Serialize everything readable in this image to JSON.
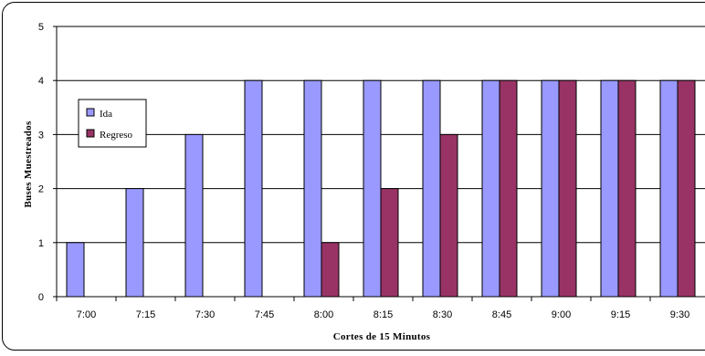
{
  "chart_data": {
    "type": "bar",
    "title": "",
    "xlabel": "Cortes de 15 Minutos",
    "ylabel": "Buses Muestreados",
    "ylim": [
      0,
      5
    ],
    "yticks": [
      0,
      1,
      2,
      3,
      4,
      5
    ],
    "grid": true,
    "legend_position": "left",
    "categories": [
      "7:00",
      "7:15",
      "7:30",
      "7:45",
      "8:00",
      "8:15",
      "8:30",
      "8:45",
      "9:00",
      "9:15",
      "9:30"
    ],
    "series": [
      {
        "name": "Ida",
        "color": "#9999FF",
        "values": [
          1,
          2,
          3,
          4,
          4,
          4,
          4,
          4,
          4,
          4,
          4
        ]
      },
      {
        "name": "Regreso",
        "color": "#993366",
        "values": [
          0,
          0,
          0,
          0,
          1,
          2,
          3,
          4,
          4,
          4,
          4
        ]
      }
    ]
  }
}
